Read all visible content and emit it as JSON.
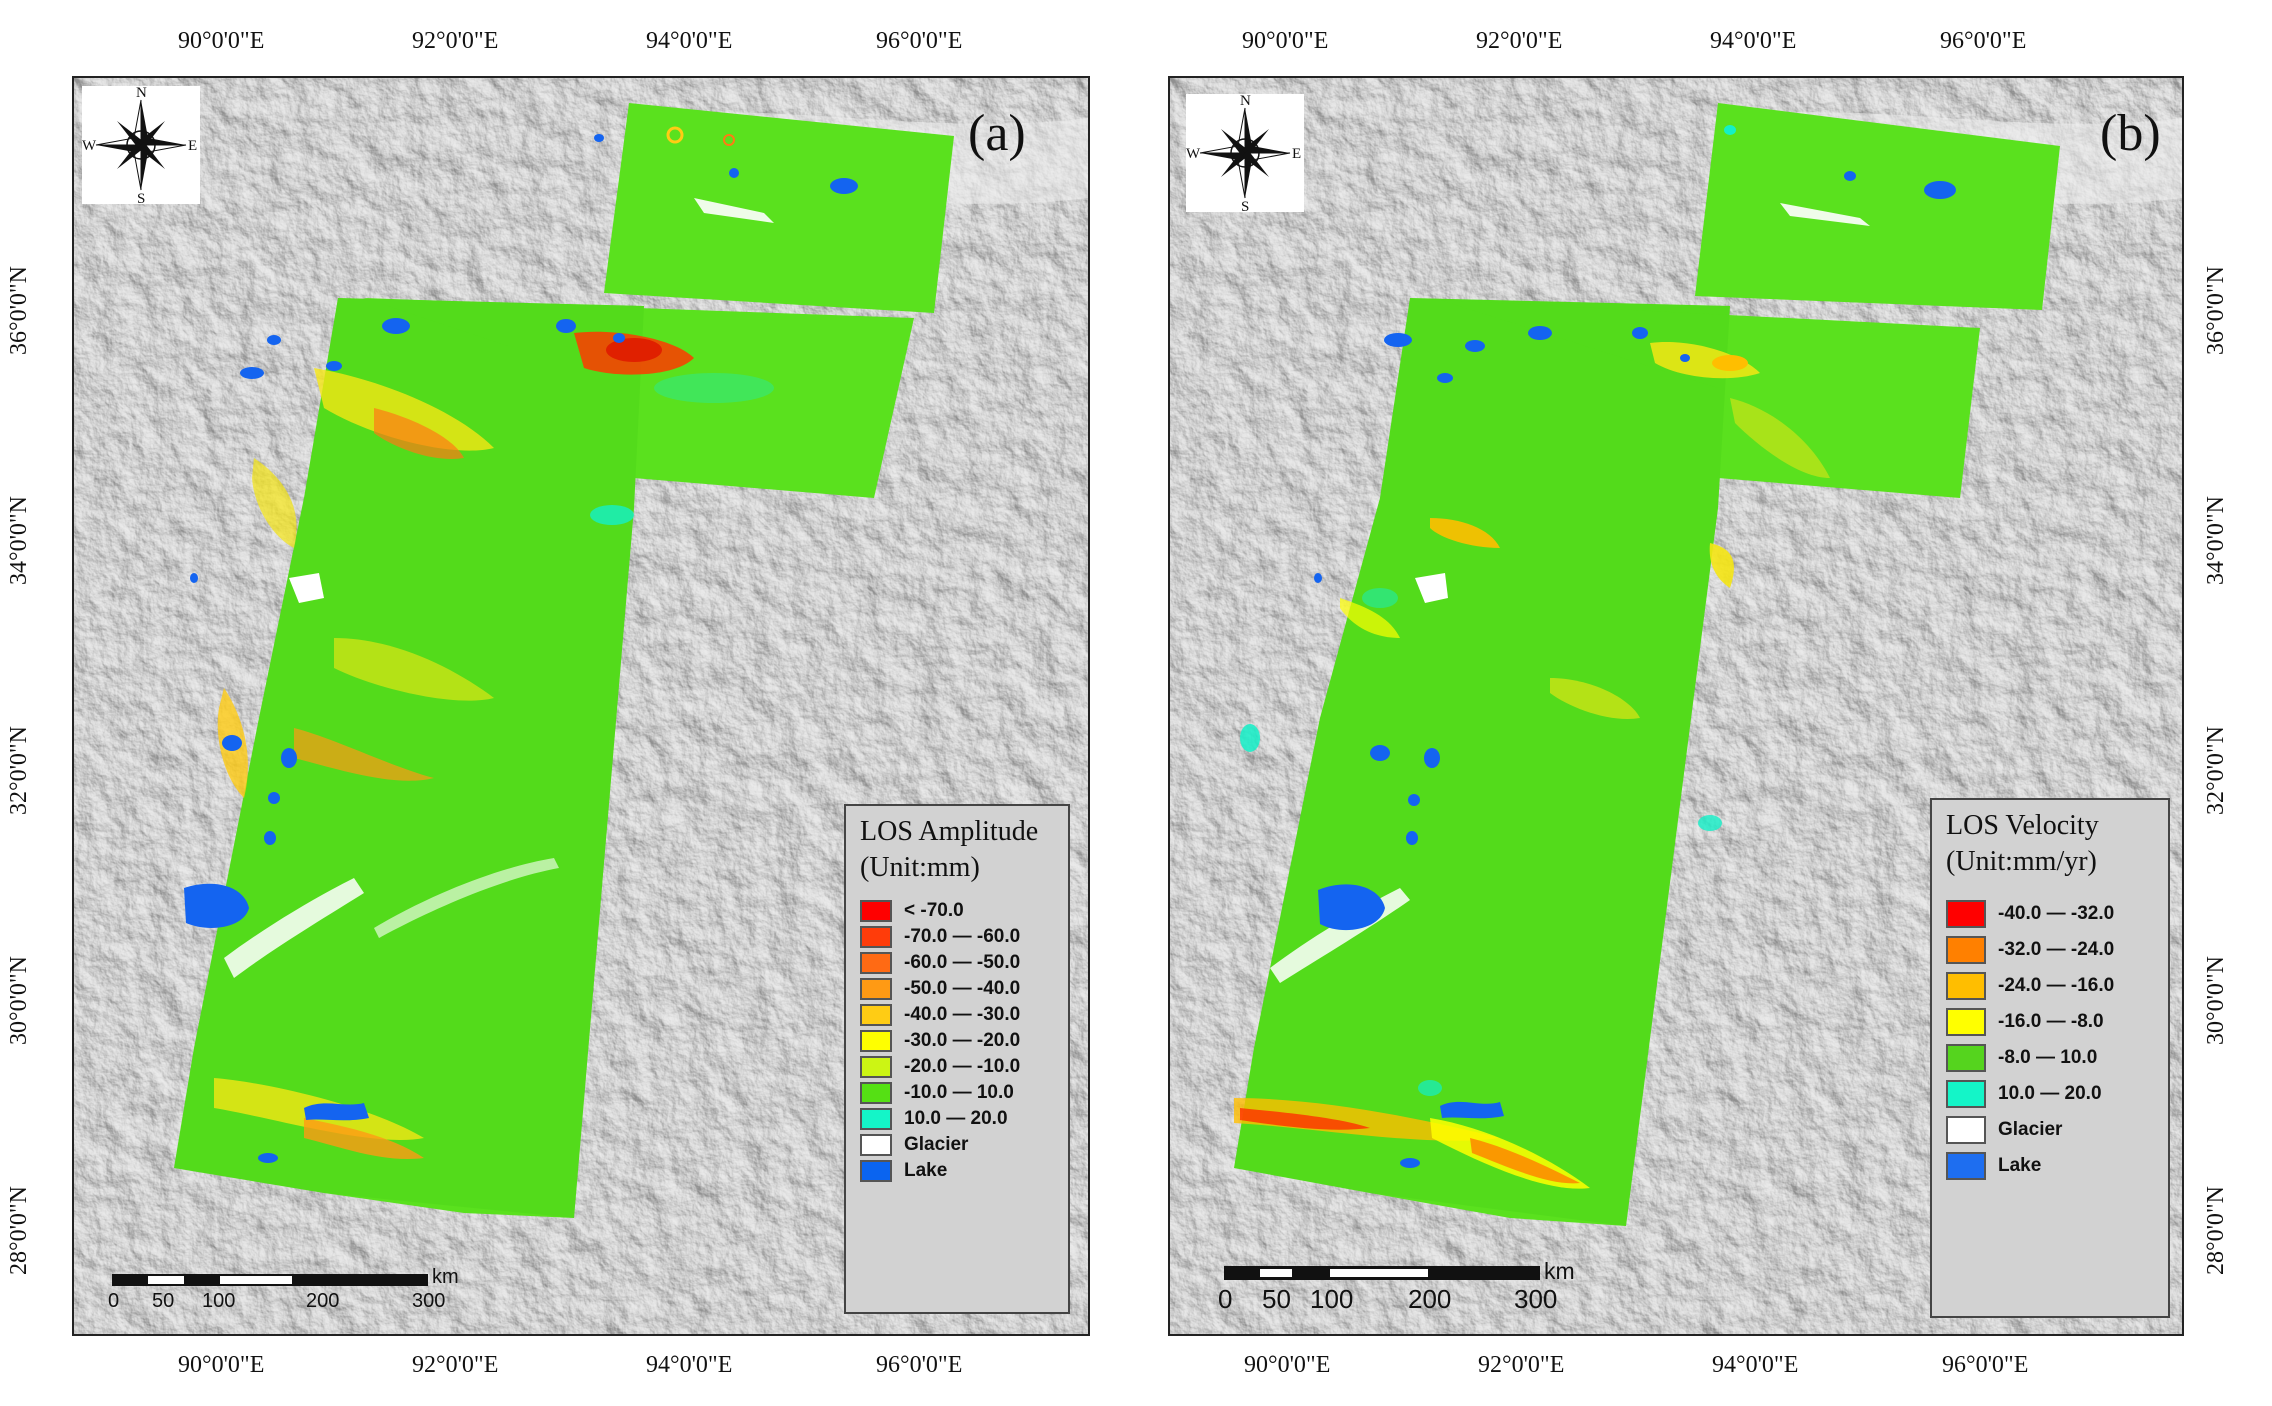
{
  "map_a": {
    "panel_label": "(a)",
    "top_lon_labels": [
      "90°0'0\"E",
      "92°0'0\"E",
      "94°0'0\"E",
      "96°0'0\"E"
    ],
    "bottom_lon_labels": [
      "90°0'0\"E",
      "92°0'0\"E",
      "94°0'0\"E",
      "96°0'0\"E"
    ],
    "left_lat_labels": [
      "36°0'0\"N",
      "34°0'0\"N",
      "32°0'0\"N",
      "30°0'0\"N",
      "28°0'0\"N"
    ],
    "compass": {
      "n": "N",
      "s": "S",
      "e": "E",
      "w": "W"
    },
    "legend": {
      "title_line1": "LOS Amplitude",
      "title_line2": "(Unit:mm)",
      "items": [
        {
          "label": "< -70.0",
          "color": "#ff0000"
        },
        {
          "label": "-70.0 — -60.0",
          "color": "#ff3c0a"
        },
        {
          "label": "-60.0 — -50.0",
          "color": "#ff6a14"
        },
        {
          "label": "-50.0 — -40.0",
          "color": "#ff9a14"
        },
        {
          "label": "-40.0 — -30.0",
          "color": "#ffcc14"
        },
        {
          "label": "-30.0 — -20.0",
          "color": "#ffff00"
        },
        {
          "label": "-20.0 — -10.0",
          "color": "#ccf514"
        },
        {
          "label": "-10.0 — 10.0",
          "color": "#55e014"
        },
        {
          "label": "10.0 — 20.0",
          "color": "#14f5c8"
        },
        {
          "label": "Glacier",
          "color": "#ffffff"
        },
        {
          "label": "Lake",
          "color": "#0a64f0"
        }
      ]
    },
    "scalebar": {
      "unit": "km",
      "ticks": [
        "0",
        "50",
        "100",
        "200",
        "300"
      ]
    }
  },
  "map_b": {
    "panel_label": "(b)",
    "top_lon_labels": [
      "90°0'0\"E",
      "92°0'0\"E",
      "94°0'0\"E",
      "96°0'0\"E"
    ],
    "bottom_lon_labels": [
      "90°0'0\"E",
      "92°0'0\"E",
      "94°0'0\"E",
      "96°0'0\"E"
    ],
    "right_lat_labels": [
      "36°0'0\"N",
      "34°0'0\"N",
      "32°0'0\"N",
      "30°0'0\"N",
      "28°0'0\"N"
    ],
    "compass": {
      "n": "N",
      "s": "S",
      "e": "E",
      "w": "W"
    },
    "legend": {
      "title_line1": "LOS Velocity",
      "title_line2": "(Unit:mm/yr)",
      "items": [
        {
          "label": "-40.0 — -32.0",
          "color": "#ff0000"
        },
        {
          "label": "-32.0 — -24.0",
          "color": "#ff8000"
        },
        {
          "label": "-24.0 — -16.0",
          "color": "#ffbe00"
        },
        {
          "label": "-16.0 — -8.0",
          "color": "#ffff00"
        },
        {
          "label": "-8.0 — 10.0",
          "color": "#55d41e"
        },
        {
          "label": "10.0 — 20.0",
          "color": "#14f5c8"
        },
        {
          "label": "Glacier",
          "color": "#ffffff"
        },
        {
          "label": "Lake",
          "color": "#1e6ef0"
        }
      ]
    },
    "scalebar": {
      "unit": "km",
      "ticks": [
        "0",
        "50",
        "100",
        "200",
        "300"
      ]
    }
  },
  "colors": {
    "hillshade": "#c8c8c8",
    "deformation_green": "#5ae11e",
    "lake": "#1464f0",
    "glacier": "#ffffff",
    "uplift_cyan": "#14f0c8",
    "subsidence_red": "#ff2a00",
    "subsidence_yellow": "#f0f014"
  }
}
